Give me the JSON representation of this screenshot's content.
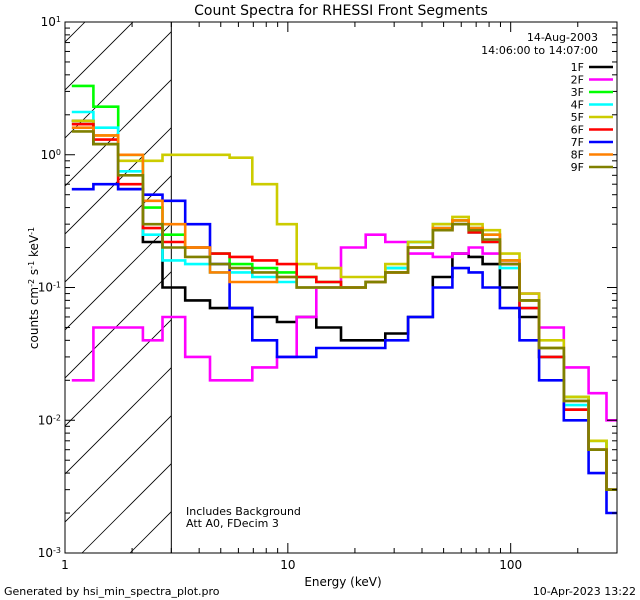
{
  "chart_data": {
    "type": "line",
    "title": "Count Spectra for RHESSI Front Segments",
    "xlabel": "Energy (keV)",
    "ylabel": "counts cm",
    "ylabel_parts": [
      "counts cm",
      "-2",
      " s",
      "-1",
      " keV",
      "-1"
    ],
    "x_scale": "log",
    "y_scale": "log",
    "xlim": [
      1,
      300
    ],
    "ylim": [
      0.001,
      10
    ],
    "x_ticks": [
      {
        "value": 1,
        "label": "1"
      },
      {
        "value": 10,
        "label": "10"
      },
      {
        "value": 100,
        "label": "100"
      }
    ],
    "y_ticks": [
      {
        "value": 10,
        "base": "10",
        "exp": "1"
      },
      {
        "value": 1,
        "base": "10",
        "exp": "0"
      },
      {
        "value": 0.1,
        "base": "10",
        "exp": "-1"
      },
      {
        "value": 0.01,
        "base": "10",
        "exp": "-2"
      },
      {
        "value": 0.001,
        "base": "10",
        "exp": "-3"
      }
    ],
    "hatched_region": {
      "x_from": 1,
      "x_to": 3
    },
    "legend_header": [
      "14-Aug-2003",
      "14:06:00 to 14:07:00"
    ],
    "annotations": [
      "Includes Background",
      "Att A0, FDecim 3"
    ],
    "footer_left": "Generated by hsi_min_spectra_plot.pro",
    "footer_right": "10-Apr-2023 13:22",
    "x": [
      1.2,
      1.5,
      2.0,
      2.5,
      3.0,
      4.0,
      5.0,
      6.0,
      8.0,
      10.0,
      12.0,
      15.0,
      20.0,
      25.0,
      30.0,
      40.0,
      50.0,
      60.0,
      70.0,
      80.0,
      100.0,
      120.0,
      150.0,
      200.0,
      250.0,
      290.0
    ],
    "series": [
      {
        "name": "1F",
        "color": "#000000",
        "values": [
          1.8,
          1.2,
          0.55,
          0.22,
          0.1,
          0.08,
          0.07,
          0.07,
          0.06,
          0.055,
          0.06,
          0.05,
          0.04,
          0.04,
          0.045,
          0.06,
          0.12,
          0.18,
          0.17,
          0.15,
          0.1,
          0.06,
          0.03,
          0.012,
          0.006,
          0.003
        ]
      },
      {
        "name": "2F",
        "color": "#ff00ff",
        "values": [
          0.02,
          0.05,
          0.05,
          0.04,
          0.06,
          0.03,
          0.02,
          0.02,
          0.025,
          0.03,
          0.06,
          0.1,
          0.2,
          0.25,
          0.22,
          0.18,
          0.17,
          0.18,
          0.2,
          0.18,
          0.15,
          0.09,
          0.05,
          0.025,
          0.016,
          0.01
        ]
      },
      {
        "name": "3F",
        "color": "#00ff00",
        "values": [
          3.3,
          2.3,
          1.0,
          0.4,
          0.25,
          0.2,
          0.18,
          0.15,
          0.14,
          0.13,
          0.12,
          0.11,
          0.1,
          0.11,
          0.14,
          0.22,
          0.3,
          0.32,
          0.28,
          0.25,
          0.16,
          0.08,
          0.035,
          0.015,
          0.007,
          0.003
        ]
      },
      {
        "name": "4F",
        "color": "#00ffff",
        "values": [
          2.1,
          1.6,
          0.75,
          0.25,
          0.16,
          0.15,
          0.13,
          0.13,
          0.12,
          0.11,
          0.1,
          0.1,
          0.1,
          0.11,
          0.14,
          0.22,
          0.28,
          0.3,
          0.26,
          0.22,
          0.14,
          0.07,
          0.03,
          0.013,
          0.006,
          0.003
        ]
      },
      {
        "name": "5F",
        "color": "#cccc00",
        "values": [
          1.8,
          1.4,
          0.9,
          0.9,
          1.0,
          1.0,
          1.0,
          0.95,
          0.6,
          0.3,
          0.15,
          0.14,
          0.12,
          0.12,
          0.15,
          0.22,
          0.3,
          0.34,
          0.3,
          0.27,
          0.18,
          0.09,
          0.04,
          0.015,
          0.007,
          0.003
        ]
      },
      {
        "name": "6F",
        "color": "#ff0000",
        "values": [
          1.7,
          1.3,
          0.6,
          0.28,
          0.22,
          0.2,
          0.18,
          0.17,
          0.16,
          0.15,
          0.12,
          0.11,
          0.1,
          0.11,
          0.13,
          0.2,
          0.27,
          0.3,
          0.26,
          0.22,
          0.15,
          0.07,
          0.03,
          0.012,
          0.006,
          0.003
        ]
      },
      {
        "name": "7F",
        "color": "#0000ff",
        "values": [
          0.55,
          0.6,
          0.55,
          0.5,
          0.45,
          0.3,
          0.15,
          0.07,
          0.04,
          0.03,
          0.03,
          0.035,
          0.035,
          0.035,
          0.04,
          0.06,
          0.1,
          0.14,
          0.13,
          0.1,
          0.07,
          0.04,
          0.02,
          0.01,
          0.004,
          0.002
        ]
      },
      {
        "name": "8F",
        "color": "#ff8000",
        "values": [
          1.6,
          1.4,
          1.0,
          0.45,
          0.3,
          0.2,
          0.13,
          0.11,
          0.11,
          0.12,
          0.1,
          0.1,
          0.1,
          0.11,
          0.13,
          0.2,
          0.28,
          0.32,
          0.28,
          0.25,
          0.16,
          0.08,
          0.035,
          0.014,
          0.006,
          0.003
        ]
      },
      {
        "name": "9F",
        "color": "#808000",
        "values": [
          1.5,
          1.2,
          0.7,
          0.3,
          0.2,
          0.17,
          0.15,
          0.14,
          0.13,
          0.12,
          0.1,
          0.1,
          0.1,
          0.11,
          0.13,
          0.2,
          0.27,
          0.3,
          0.27,
          0.23,
          0.15,
          0.08,
          0.035,
          0.014,
          0.006,
          0.003
        ]
      }
    ]
  }
}
